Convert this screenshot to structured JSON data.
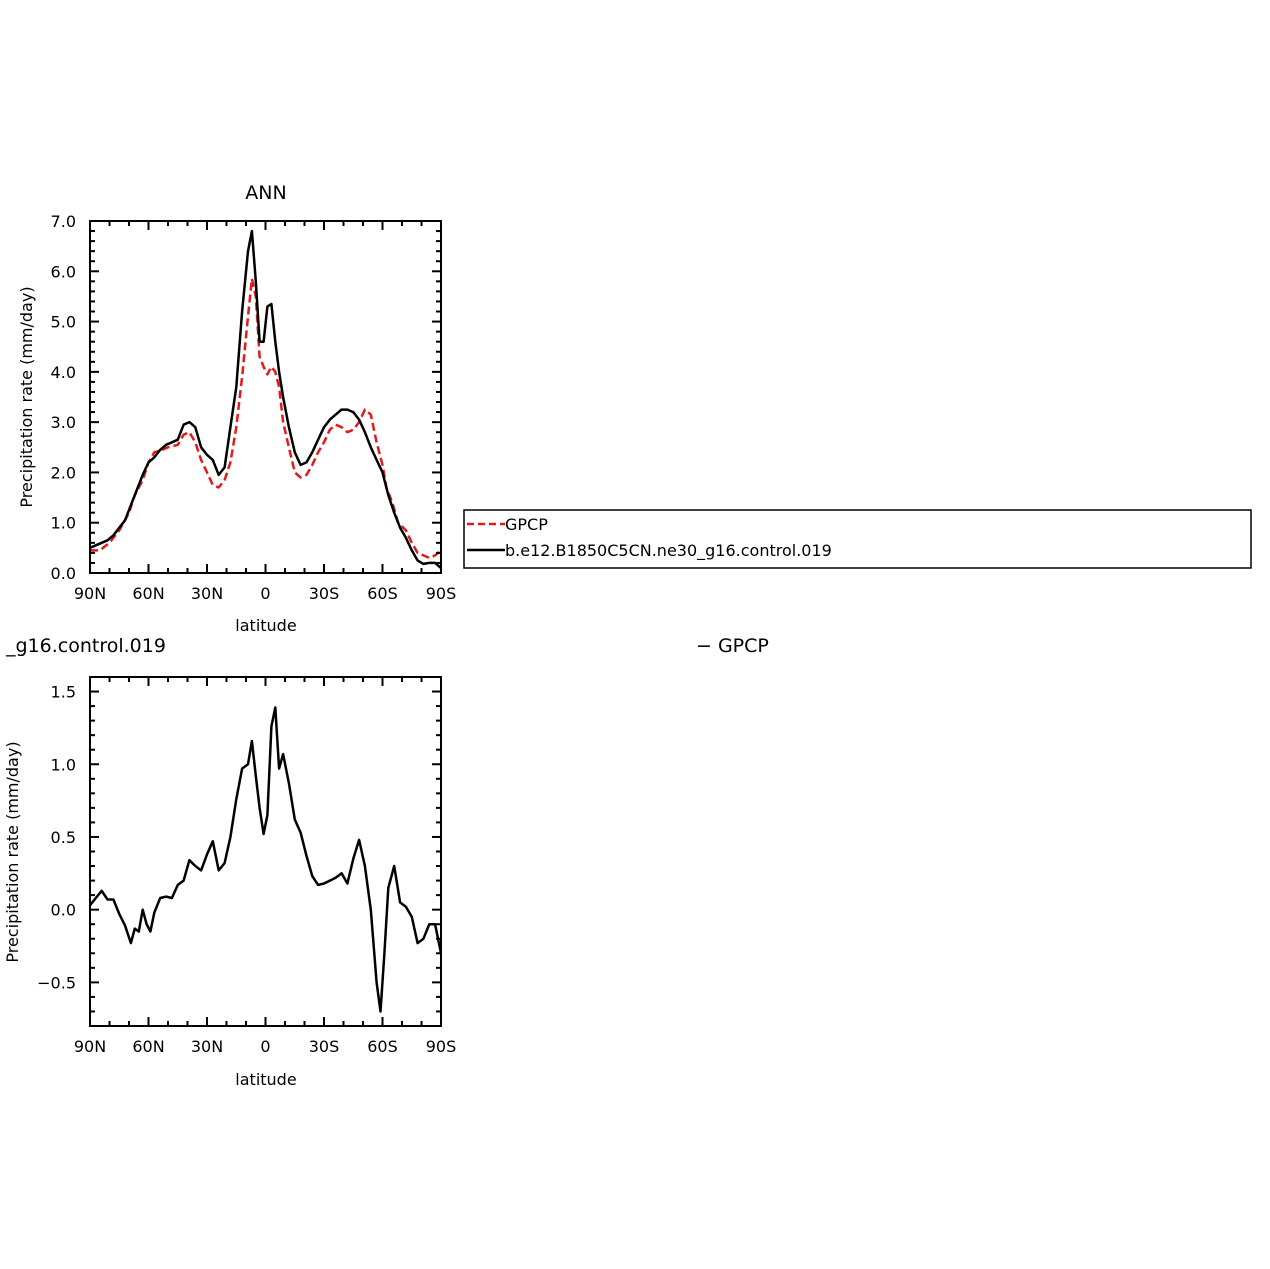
{
  "chart_data": [
    {
      "type": "line",
      "title": "ANN",
      "xlabel": "latitude",
      "ylabel": "Precipitation rate (mm/day)",
      "xlim": [
        90,
        -90
      ],
      "ylim": [
        0,
        7
      ],
      "x_ticks": [
        90,
        60,
        30,
        0,
        -30,
        -60,
        -90
      ],
      "x_tick_labels": [
        "90N",
        "60N",
        "30N",
        "0",
        "30S",
        "60S",
        "90S"
      ],
      "y_ticks": [
        0,
        1,
        2,
        3,
        4,
        5,
        6,
        7
      ],
      "y_tick_labels": [
        "0.0",
        "1.0",
        "2.0",
        "3.0",
        "4.0",
        "5.0",
        "6.0",
        "7.0"
      ],
      "legend_position": "right",
      "series": [
        {
          "name": "GPCP",
          "color": "#e31a1c",
          "style": "dashed",
          "x": [
            90,
            85,
            80,
            75,
            70,
            67,
            63,
            60,
            57,
            53,
            50,
            45,
            42,
            39,
            36,
            33,
            30,
            27,
            24,
            21,
            18,
            15,
            12,
            9,
            7,
            5,
            3,
            1,
            -1,
            -3,
            -5,
            -7,
            -9,
            -12,
            -15,
            -18,
            -21,
            -24,
            -27,
            -30,
            -33,
            -36,
            -39,
            -42,
            -45,
            -48,
            -51,
            -54,
            -57,
            -60,
            -62,
            -65,
            -68,
            -72,
            -75,
            -78,
            -81,
            -84,
            -87,
            -90
          ],
          "values": [
            0.45,
            0.45,
            0.6,
            0.85,
            1.2,
            1.55,
            1.85,
            2.2,
            2.4,
            2.45,
            2.5,
            2.55,
            2.75,
            2.8,
            2.6,
            2.25,
            2.0,
            1.75,
            1.7,
            1.85,
            2.2,
            2.9,
            3.9,
            5.1,
            5.85,
            5.5,
            4.3,
            4.1,
            3.95,
            4.1,
            4.0,
            3.7,
            3.0,
            2.5,
            2.0,
            1.9,
            1.95,
            2.15,
            2.4,
            2.6,
            2.85,
            2.95,
            2.9,
            2.8,
            2.85,
            3.0,
            3.25,
            3.15,
            2.6,
            2.15,
            1.7,
            1.4,
            1.0,
            0.85,
            0.6,
            0.4,
            0.35,
            0.3,
            0.35,
            0.45
          ]
        },
        {
          "name": "b.e12.B1850C5CN.ne30_g16.control.019",
          "color": "#000000",
          "style": "solid",
          "x": [
            90,
            87,
            84,
            81,
            78,
            75,
            72,
            69,
            66,
            63,
            60,
            57,
            54,
            51,
            48,
            45,
            42,
            39,
            36,
            33,
            30,
            27,
            24,
            21,
            18,
            15,
            12,
            9,
            7,
            5,
            3,
            1,
            -1,
            -3,
            -5,
            -7,
            -9,
            -12,
            -15,
            -18,
            -21,
            -24,
            -27,
            -30,
            -33,
            -36,
            -39,
            -42,
            -45,
            -48,
            -51,
            -54,
            -57,
            -60,
            -63,
            -66,
            -69,
            -72,
            -75,
            -78,
            -81,
            -84,
            -87,
            -90
          ],
          "values": [
            0.5,
            0.55,
            0.6,
            0.65,
            0.75,
            0.9,
            1.05,
            1.35,
            1.65,
            1.95,
            2.2,
            2.3,
            2.45,
            2.55,
            2.6,
            2.65,
            2.95,
            3.0,
            2.9,
            2.5,
            2.35,
            2.25,
            1.95,
            2.1,
            2.9,
            3.7,
            5.2,
            6.4,
            6.8,
            5.8,
            4.6,
            4.6,
            5.3,
            5.35,
            4.6,
            4.0,
            3.5,
            2.9,
            2.4,
            2.15,
            2.2,
            2.4,
            2.65,
            2.9,
            3.05,
            3.15,
            3.25,
            3.25,
            3.2,
            3.05,
            2.8,
            2.5,
            2.25,
            2.0,
            1.55,
            1.2,
            0.9,
            0.7,
            0.45,
            0.25,
            0.18,
            0.2,
            0.2,
            0.1
          ]
        }
      ]
    },
    {
      "type": "line",
      "title_left": "_g16.control.019",
      "title_right": "− GPCP",
      "xlabel": "latitude",
      "ylabel": "Precipitation rate (mm/day)",
      "xlim": [
        90,
        -90
      ],
      "ylim": [
        -0.8,
        1.6
      ],
      "x_ticks": [
        90,
        60,
        30,
        0,
        -30,
        -60,
        -90
      ],
      "x_tick_labels": [
        "90N",
        "60N",
        "30N",
        "0",
        "30S",
        "60S",
        "90S"
      ],
      "y_ticks": [
        -0.5,
        0,
        0.5,
        1.0,
        1.5
      ],
      "y_tick_labels": [
        "−0.5",
        "0.0",
        "0.5",
        "1.0",
        "1.5"
      ],
      "series": [
        {
          "color": "#000000",
          "style": "solid",
          "x": [
            90,
            87,
            84,
            81,
            78,
            75,
            72,
            69,
            67,
            65,
            63,
            61,
            59,
            57,
            54,
            51,
            48,
            45,
            42,
            39,
            36,
            33,
            30,
            27,
            24,
            21,
            18,
            15,
            12,
            9,
            7,
            5,
            3,
            1,
            -1,
            -3,
            -5,
            -7,
            -9,
            -12,
            -15,
            -18,
            -21,
            -24,
            -27,
            -30,
            -33,
            -36,
            -39,
            -42,
            -45,
            -48,
            -51,
            -54,
            -57,
            -59,
            -61,
            -63,
            -66,
            -69,
            -72,
            -75,
            -78,
            -81,
            -84,
            -87,
            -90
          ],
          "values": [
            0.03,
            0.08,
            0.13,
            0.07,
            0.07,
            -0.03,
            -0.11,
            -0.23,
            -0.13,
            -0.15,
            0.0,
            -0.1,
            -0.15,
            -0.02,
            0.08,
            0.09,
            0.08,
            0.17,
            0.2,
            0.34,
            0.3,
            0.27,
            0.38,
            0.47,
            0.27,
            0.32,
            0.5,
            0.76,
            0.97,
            1.0,
            1.16,
            0.92,
            0.7,
            0.52,
            0.65,
            1.26,
            1.39,
            0.97,
            1.07,
            0.87,
            0.62,
            0.53,
            0.37,
            0.23,
            0.17,
            0.18,
            0.2,
            0.22,
            0.25,
            0.18,
            0.35,
            0.48,
            0.3,
            0.0,
            -0.5,
            -0.7,
            -0.3,
            0.15,
            0.3,
            0.05,
            0.02,
            -0.05,
            -0.23,
            -0.2,
            -0.1,
            -0.1,
            -0.3
          ]
        }
      ]
    }
  ]
}
